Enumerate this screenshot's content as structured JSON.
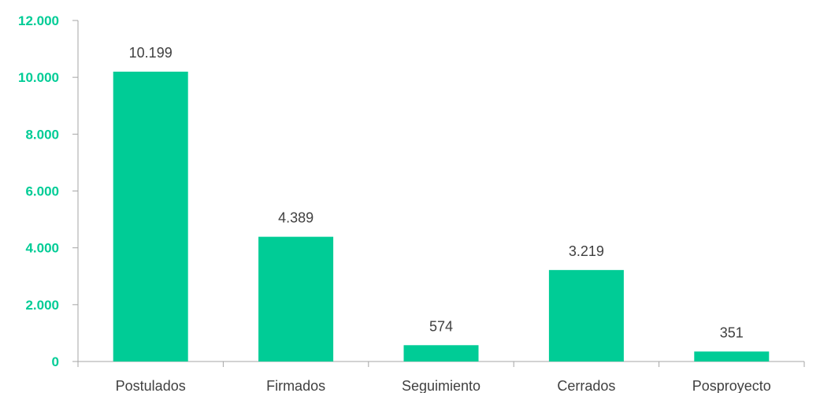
{
  "chart_data": {
    "type": "bar",
    "categories": [
      "Postulados",
      "Firmados",
      "Seguimiento",
      "Cerrados",
      "Posproyecto"
    ],
    "values": [
      10199,
      4389,
      574,
      3219,
      351
    ],
    "value_labels": [
      "10.199",
      "4.389",
      "574",
      "3.219",
      "351"
    ],
    "y_ticks": [
      0,
      2000,
      4000,
      6000,
      8000,
      10000,
      12000
    ],
    "y_tick_labels": [
      "0",
      "2.000",
      "4.000",
      "6.000",
      "8.000",
      "10.000",
      "12.000"
    ],
    "ylim": [
      0,
      12000
    ],
    "title": "",
    "xlabel": "",
    "ylabel": "",
    "grid": false,
    "legend": "none",
    "colors": {
      "bar": "#00cc96",
      "y_tick_text": "#00cc96",
      "axis": "#a6a6a6",
      "text": "#404040"
    }
  }
}
